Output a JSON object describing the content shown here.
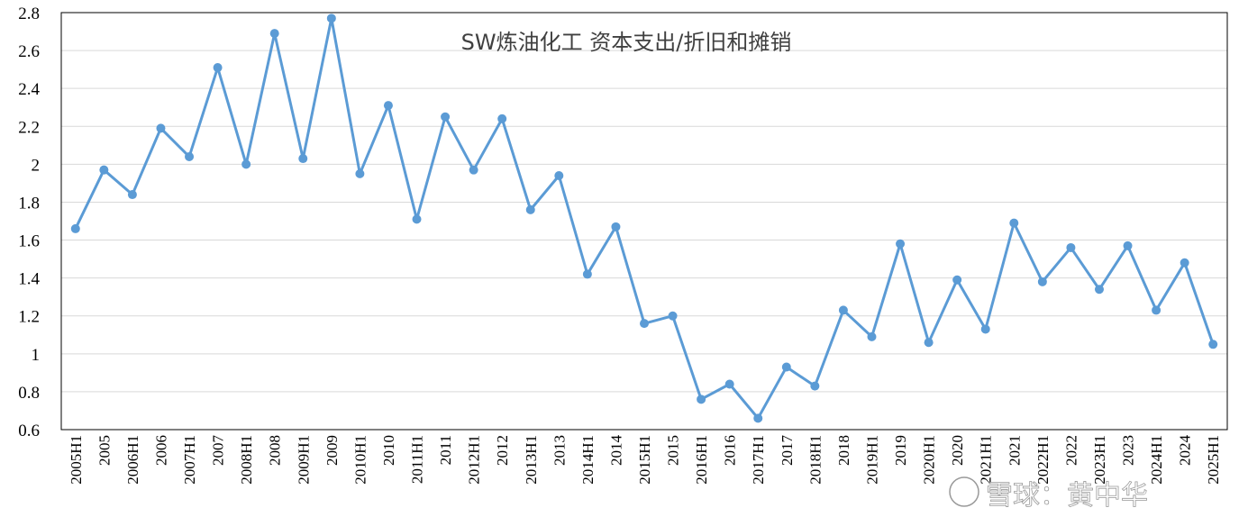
{
  "chart_data": {
    "type": "line",
    "title": "SW炼油化工 资本支出/折旧和摊销",
    "xlabel": "",
    "ylabel": "",
    "ylim": [
      0.6,
      2.8
    ],
    "yticks": [
      "0.6",
      "0.8",
      "1",
      "1.2",
      "1.4",
      "1.6",
      "1.8",
      "2",
      "2.2",
      "2.4",
      "2.6",
      "2.8"
    ],
    "grid": true,
    "legend": "none",
    "categories": [
      "2005H1",
      "2005",
      "2006H1",
      "2006",
      "2007H1",
      "2007",
      "2008H1",
      "2008",
      "2009H1",
      "2009",
      "2010H1",
      "2010",
      "2011H1",
      "2011",
      "2012H1",
      "2012",
      "2013H1",
      "2013",
      "2014H1",
      "2014",
      "2015H1",
      "2015",
      "2016H1",
      "2016",
      "2017H1",
      "2017",
      "2018H1",
      "2018",
      "2019H1",
      "2019",
      "2020H1",
      "2020",
      "2021H1",
      "2021",
      "2022H1",
      "2022",
      "2023H1",
      "2023",
      "2024H1",
      "2024",
      "2025H1"
    ],
    "series": [
      {
        "color": "#5b9bd5",
        "values": [
          1.66,
          1.97,
          1.84,
          2.19,
          2.04,
          2.51,
          2.0,
          2.69,
          2.03,
          2.77,
          1.95,
          2.31,
          1.71,
          2.25,
          1.97,
          2.24,
          1.76,
          1.94,
          1.42,
          1.67,
          1.16,
          1.2,
          0.76,
          0.84,
          0.66,
          0.93,
          0.83,
          1.23,
          1.09,
          1.58,
          1.06,
          1.39,
          1.13,
          1.69,
          1.38,
          1.56,
          1.34,
          1.57,
          1.23,
          1.48,
          1.05
        ]
      }
    ]
  },
  "watermark": "雪球：黄中华"
}
